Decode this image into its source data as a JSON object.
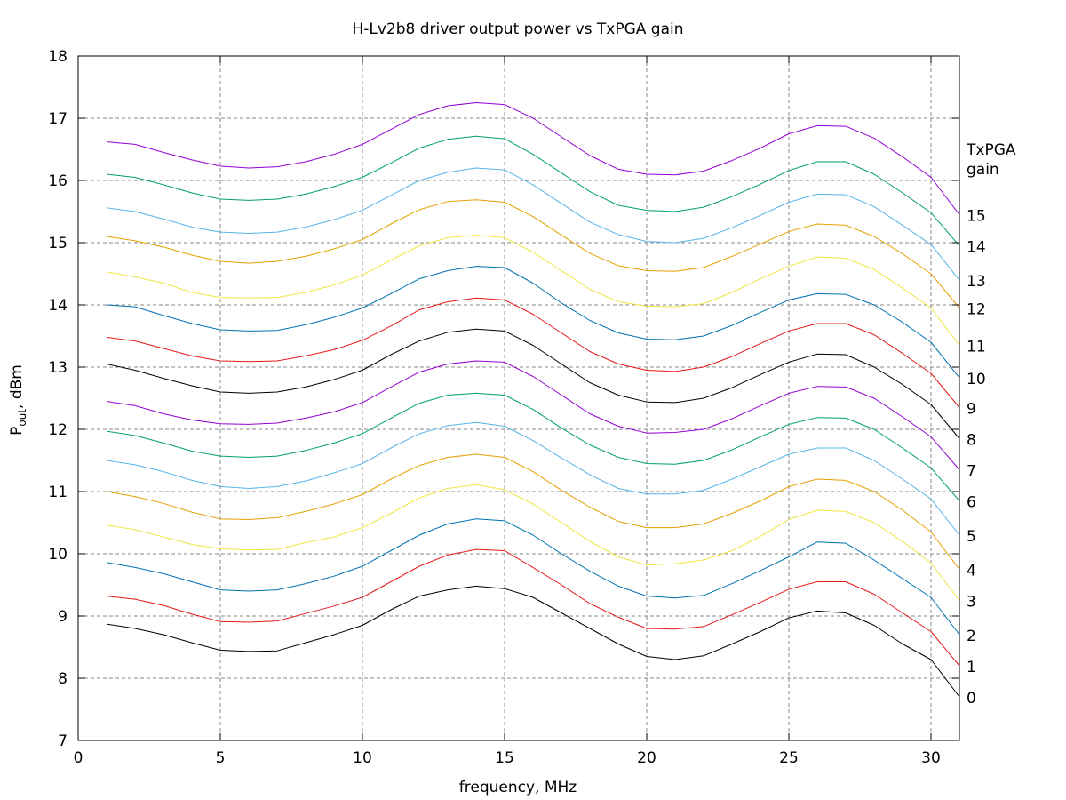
{
  "chart_data": {
    "type": "line",
    "title": "H-Lv2b8 driver output power vs TxPGA gain",
    "xlabel": "frequency, MHz",
    "ylabel": {
      "main": "P",
      "sub": "out",
      "rest": ", dBm"
    },
    "xlim": [
      0,
      31
    ],
    "ylim": [
      7,
      18
    ],
    "xticks": [
      0,
      5,
      10,
      15,
      20,
      25,
      30
    ],
    "yticks": [
      7,
      8,
      9,
      10,
      11,
      12,
      13,
      14,
      15,
      16,
      17,
      18
    ],
    "grid": true,
    "legend_title": [
      "TxPGA",
      "gain"
    ],
    "x": [
      1,
      2,
      3,
      4,
      5,
      6,
      7,
      8,
      9,
      10,
      11,
      12,
      13,
      14,
      15,
      16,
      17,
      18,
      19,
      20,
      21,
      22,
      23,
      24,
      25,
      26,
      27,
      28,
      29,
      30,
      31
    ],
    "series": [
      {
        "name": "0",
        "color": "#000000",
        "values": [
          8.87,
          8.8,
          8.7,
          8.57,
          8.45,
          8.43,
          8.44,
          8.57,
          8.7,
          8.85,
          9.1,
          9.32,
          9.42,
          9.48,
          9.44,
          9.3,
          9.05,
          8.8,
          8.55,
          8.35,
          8.3,
          8.36,
          8.55,
          8.75,
          8.97,
          9.08,
          9.05,
          8.85,
          8.55,
          8.3,
          7.7
        ]
      },
      {
        "name": "1",
        "color": "#e41a1c",
        "values": [
          9.32,
          9.27,
          9.17,
          9.03,
          8.91,
          8.9,
          8.92,
          9.04,
          9.16,
          9.3,
          9.55,
          9.8,
          9.98,
          10.07,
          10.05,
          9.78,
          9.5,
          9.2,
          8.98,
          8.8,
          8.79,
          8.83,
          9.02,
          9.22,
          9.43,
          9.55,
          9.55,
          9.35,
          9.05,
          8.75,
          8.2
        ]
      },
      {
        "name": "2",
        "color": "#0072b2",
        "values": [
          9.86,
          9.78,
          9.68,
          9.55,
          9.42,
          9.4,
          9.42,
          9.52,
          9.64,
          9.8,
          10.05,
          10.3,
          10.48,
          10.56,
          10.53,
          10.3,
          10.0,
          9.72,
          9.48,
          9.32,
          9.29,
          9.33,
          9.52,
          9.73,
          9.95,
          10.19,
          10.17,
          9.9,
          9.6,
          9.3,
          8.7
        ]
      },
      {
        "name": "3",
        "color": "#f0e442",
        "values": [
          10.46,
          10.39,
          10.27,
          10.15,
          10.08,
          10.06,
          10.07,
          10.18,
          10.27,
          10.42,
          10.65,
          10.9,
          11.05,
          11.11,
          11.03,
          10.8,
          10.5,
          10.2,
          9.95,
          9.82,
          9.84,
          9.9,
          10.05,
          10.28,
          10.55,
          10.7,
          10.68,
          10.5,
          10.2,
          9.85,
          9.25
        ]
      },
      {
        "name": "4",
        "color": "#e69f00",
        "values": [
          11.0,
          10.92,
          10.81,
          10.67,
          10.56,
          10.55,
          10.58,
          10.68,
          10.8,
          10.95,
          11.2,
          11.42,
          11.55,
          11.6,
          11.55,
          11.32,
          11.02,
          10.75,
          10.52,
          10.42,
          10.42,
          10.48,
          10.65,
          10.85,
          11.08,
          11.2,
          11.18,
          11.0,
          10.7,
          10.35,
          9.75
        ]
      },
      {
        "name": "5",
        "color": "#56b4e9",
        "values": [
          11.5,
          11.43,
          11.32,
          11.18,
          11.08,
          11.05,
          11.08,
          11.17,
          11.3,
          11.45,
          11.7,
          11.93,
          12.06,
          12.11,
          12.05,
          11.82,
          11.54,
          11.27,
          11.05,
          10.96,
          10.96,
          11.02,
          11.2,
          11.4,
          11.6,
          11.7,
          11.7,
          11.5,
          11.2,
          10.88,
          10.3
        ]
      },
      {
        "name": "6",
        "color": "#009e73",
        "values": [
          11.97,
          11.9,
          11.78,
          11.65,
          11.57,
          11.55,
          11.57,
          11.66,
          11.78,
          11.93,
          12.18,
          12.42,
          12.55,
          12.58,
          12.55,
          12.32,
          12.02,
          11.75,
          11.55,
          11.45,
          11.44,
          11.5,
          11.67,
          11.88,
          12.08,
          12.19,
          12.18,
          12.0,
          11.7,
          11.38,
          10.85
        ]
      },
      {
        "name": "7",
        "color": "#9400d3",
        "values": [
          12.45,
          12.38,
          12.25,
          12.15,
          12.09,
          12.08,
          12.1,
          12.18,
          12.28,
          12.43,
          12.68,
          12.92,
          13.05,
          13.1,
          13.08,
          12.85,
          12.55,
          12.25,
          12.05,
          11.94,
          11.95,
          12.0,
          12.17,
          12.38,
          12.58,
          12.69,
          12.68,
          12.5,
          12.2,
          11.88,
          11.35
        ]
      },
      {
        "name": "8",
        "color": "#000000",
        "values": [
          13.05,
          12.95,
          12.82,
          12.7,
          12.6,
          12.58,
          12.6,
          12.68,
          12.8,
          12.95,
          13.2,
          13.42,
          13.56,
          13.61,
          13.58,
          13.35,
          13.05,
          12.75,
          12.55,
          12.44,
          12.43,
          12.5,
          12.67,
          12.88,
          13.08,
          13.21,
          13.2,
          13.0,
          12.72,
          12.4,
          11.85
        ]
      },
      {
        "name": "9",
        "color": "#e41a1c",
        "values": [
          13.48,
          13.42,
          13.3,
          13.18,
          13.1,
          13.09,
          13.1,
          13.18,
          13.28,
          13.43,
          13.66,
          13.92,
          14.05,
          14.11,
          14.08,
          13.85,
          13.55,
          13.25,
          13.05,
          12.95,
          12.93,
          13.0,
          13.17,
          13.38,
          13.58,
          13.7,
          13.7,
          13.52,
          13.22,
          12.9,
          12.35
        ]
      },
      {
        "name": "10",
        "color": "#0072b2",
        "values": [
          14.0,
          13.97,
          13.83,
          13.7,
          13.6,
          13.58,
          13.59,
          13.68,
          13.8,
          13.95,
          14.18,
          14.42,
          14.55,
          14.62,
          14.6,
          14.35,
          14.03,
          13.75,
          13.55,
          13.45,
          13.44,
          13.5,
          13.67,
          13.88,
          14.08,
          14.18,
          14.17,
          14.0,
          13.72,
          13.4,
          12.83
        ]
      },
      {
        "name": "11",
        "color": "#f0e442",
        "values": [
          14.53,
          14.45,
          14.35,
          14.2,
          14.12,
          14.11,
          14.12,
          14.2,
          14.32,
          14.48,
          14.72,
          14.95,
          15.08,
          15.12,
          15.08,
          14.85,
          14.55,
          14.25,
          14.05,
          13.98,
          13.97,
          14.02,
          14.2,
          14.42,
          14.62,
          14.77,
          14.75,
          14.57,
          14.27,
          13.95,
          13.35
        ]
      },
      {
        "name": "12",
        "color": "#e69f00",
        "values": [
          15.1,
          15.03,
          14.93,
          14.8,
          14.7,
          14.67,
          14.7,
          14.78,
          14.9,
          15.05,
          15.3,
          15.53,
          15.66,
          15.69,
          15.65,
          15.42,
          15.12,
          14.83,
          14.63,
          14.55,
          14.54,
          14.6,
          14.78,
          14.98,
          15.18,
          15.3,
          15.28,
          15.1,
          14.82,
          14.5,
          13.95
        ]
      },
      {
        "name": "13",
        "color": "#56b4e9",
        "values": [
          15.56,
          15.5,
          15.38,
          15.25,
          15.17,
          15.15,
          15.17,
          15.25,
          15.37,
          15.52,
          15.76,
          16.0,
          16.13,
          16.2,
          16.17,
          15.93,
          15.63,
          15.33,
          15.13,
          15.02,
          15.0,
          15.07,
          15.24,
          15.44,
          15.65,
          15.78,
          15.77,
          15.58,
          15.28,
          14.97,
          14.4
        ]
      },
      {
        "name": "14",
        "color": "#009e73",
        "values": [
          16.1,
          16.05,
          15.93,
          15.8,
          15.7,
          15.68,
          15.7,
          15.78,
          15.9,
          16.05,
          16.28,
          16.52,
          16.66,
          16.71,
          16.67,
          16.42,
          16.12,
          15.82,
          15.6,
          15.52,
          15.5,
          15.57,
          15.74,
          15.94,
          16.16,
          16.3,
          16.3,
          16.1,
          15.8,
          15.48,
          14.95
        ]
      },
      {
        "name": "15",
        "color": "#9400d3",
        "values": [
          16.62,
          16.58,
          16.45,
          16.33,
          16.23,
          16.2,
          16.22,
          16.3,
          16.42,
          16.58,
          16.82,
          17.06,
          17.2,
          17.25,
          17.22,
          17.0,
          16.7,
          16.4,
          16.18,
          16.1,
          16.09,
          16.15,
          16.32,
          16.52,
          16.75,
          16.88,
          16.87,
          16.68,
          16.38,
          16.05,
          15.45
        ]
      }
    ]
  }
}
